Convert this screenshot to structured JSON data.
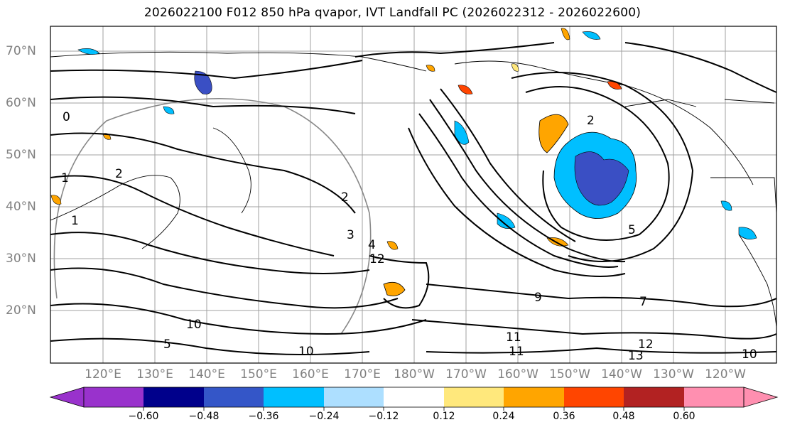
{
  "title": "2026022100 F012 850 hPa qvapor, IVT Landfall PC (2026022312 - 2026022600)",
  "lat_labels": [
    "70°N",
    "60°N",
    "50°N",
    "40°N",
    "30°N",
    "20°N"
  ],
  "lon_labels": [
    "120°E",
    "130°E",
    "140°E",
    "150°E",
    "160°E",
    "170°E",
    "180°W",
    "170°W",
    "160°W",
    "150°W",
    "140°W",
    "130°W",
    "120°W"
  ],
  "contour_labels": [
    "0",
    "1",
    "1",
    "2",
    "2",
    "2",
    "3",
    "4",
    "5",
    "5",
    "7",
    "9",
    "10",
    "10",
    "11",
    "11",
    "12",
    "12",
    "13",
    "10"
  ],
  "colorbar": {
    "tick_labels": [
      "−0.60",
      "−0.48",
      "−0.36",
      "−0.24",
      "−0.12",
      "0.12",
      "0.24",
      "0.36",
      "0.48",
      "0.60"
    ],
    "colors": [
      "#9932CC",
      "#00008B",
      "#3456C8",
      "#00BFFF",
      "#ADDFFF",
      "#FFFFFF",
      "#FFE87C",
      "#FFA500",
      "#FF4500",
      "#B22222",
      "#FF8FB0"
    ]
  },
  "colors": {
    "negative_strong": "#3a4fc4",
    "negative_mid": "#00BFFF",
    "positive_mid": "#FFA500",
    "positive_weak": "#FFE87C",
    "grid": "#a0a0a0",
    "label": "#808080"
  }
}
